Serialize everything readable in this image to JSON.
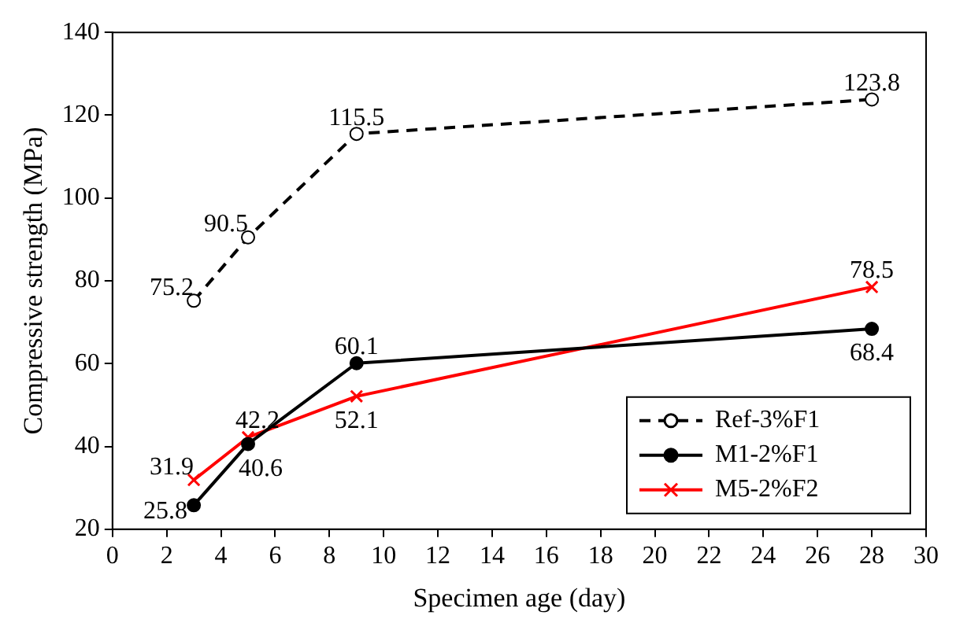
{
  "chart_data": {
    "type": "line",
    "xlabel": "Specimen age (day)",
    "ylabel": "Compressive strength (MPa)",
    "x": [
      3,
      5,
      9,
      28
    ],
    "series": [
      {
        "name": "Ref-3%F1",
        "color": "#000000",
        "values": [
          75.2,
          90.5,
          115.5,
          123.8
        ],
        "marker": "circle",
        "line_style": "dashed"
      },
      {
        "name": "M1-2%F1",
        "color": "#000000",
        "values": [
          25.8,
          40.6,
          60.1,
          68.4
        ],
        "marker": "circle",
        "line_style": "solid"
      },
      {
        "name": "M5-2%F2",
        "color": "#ff0000",
        "values": [
          31.9,
          42.2,
          52.1,
          78.5
        ],
        "marker": "cross",
        "line_style": "solid"
      }
    ],
    "xlim": [
      0,
      30
    ],
    "xticks": [
      0,
      2,
      4,
      6,
      8,
      10,
      12,
      14,
      16,
      18,
      20,
      22,
      24,
      26,
      28,
      30
    ],
    "ylim": [
      20,
      140
    ],
    "yticks": [
      20,
      40,
      60,
      80,
      100,
      120,
      140
    ],
    "grid": false,
    "legend": "bottom right",
    "data_labels": true
  }
}
